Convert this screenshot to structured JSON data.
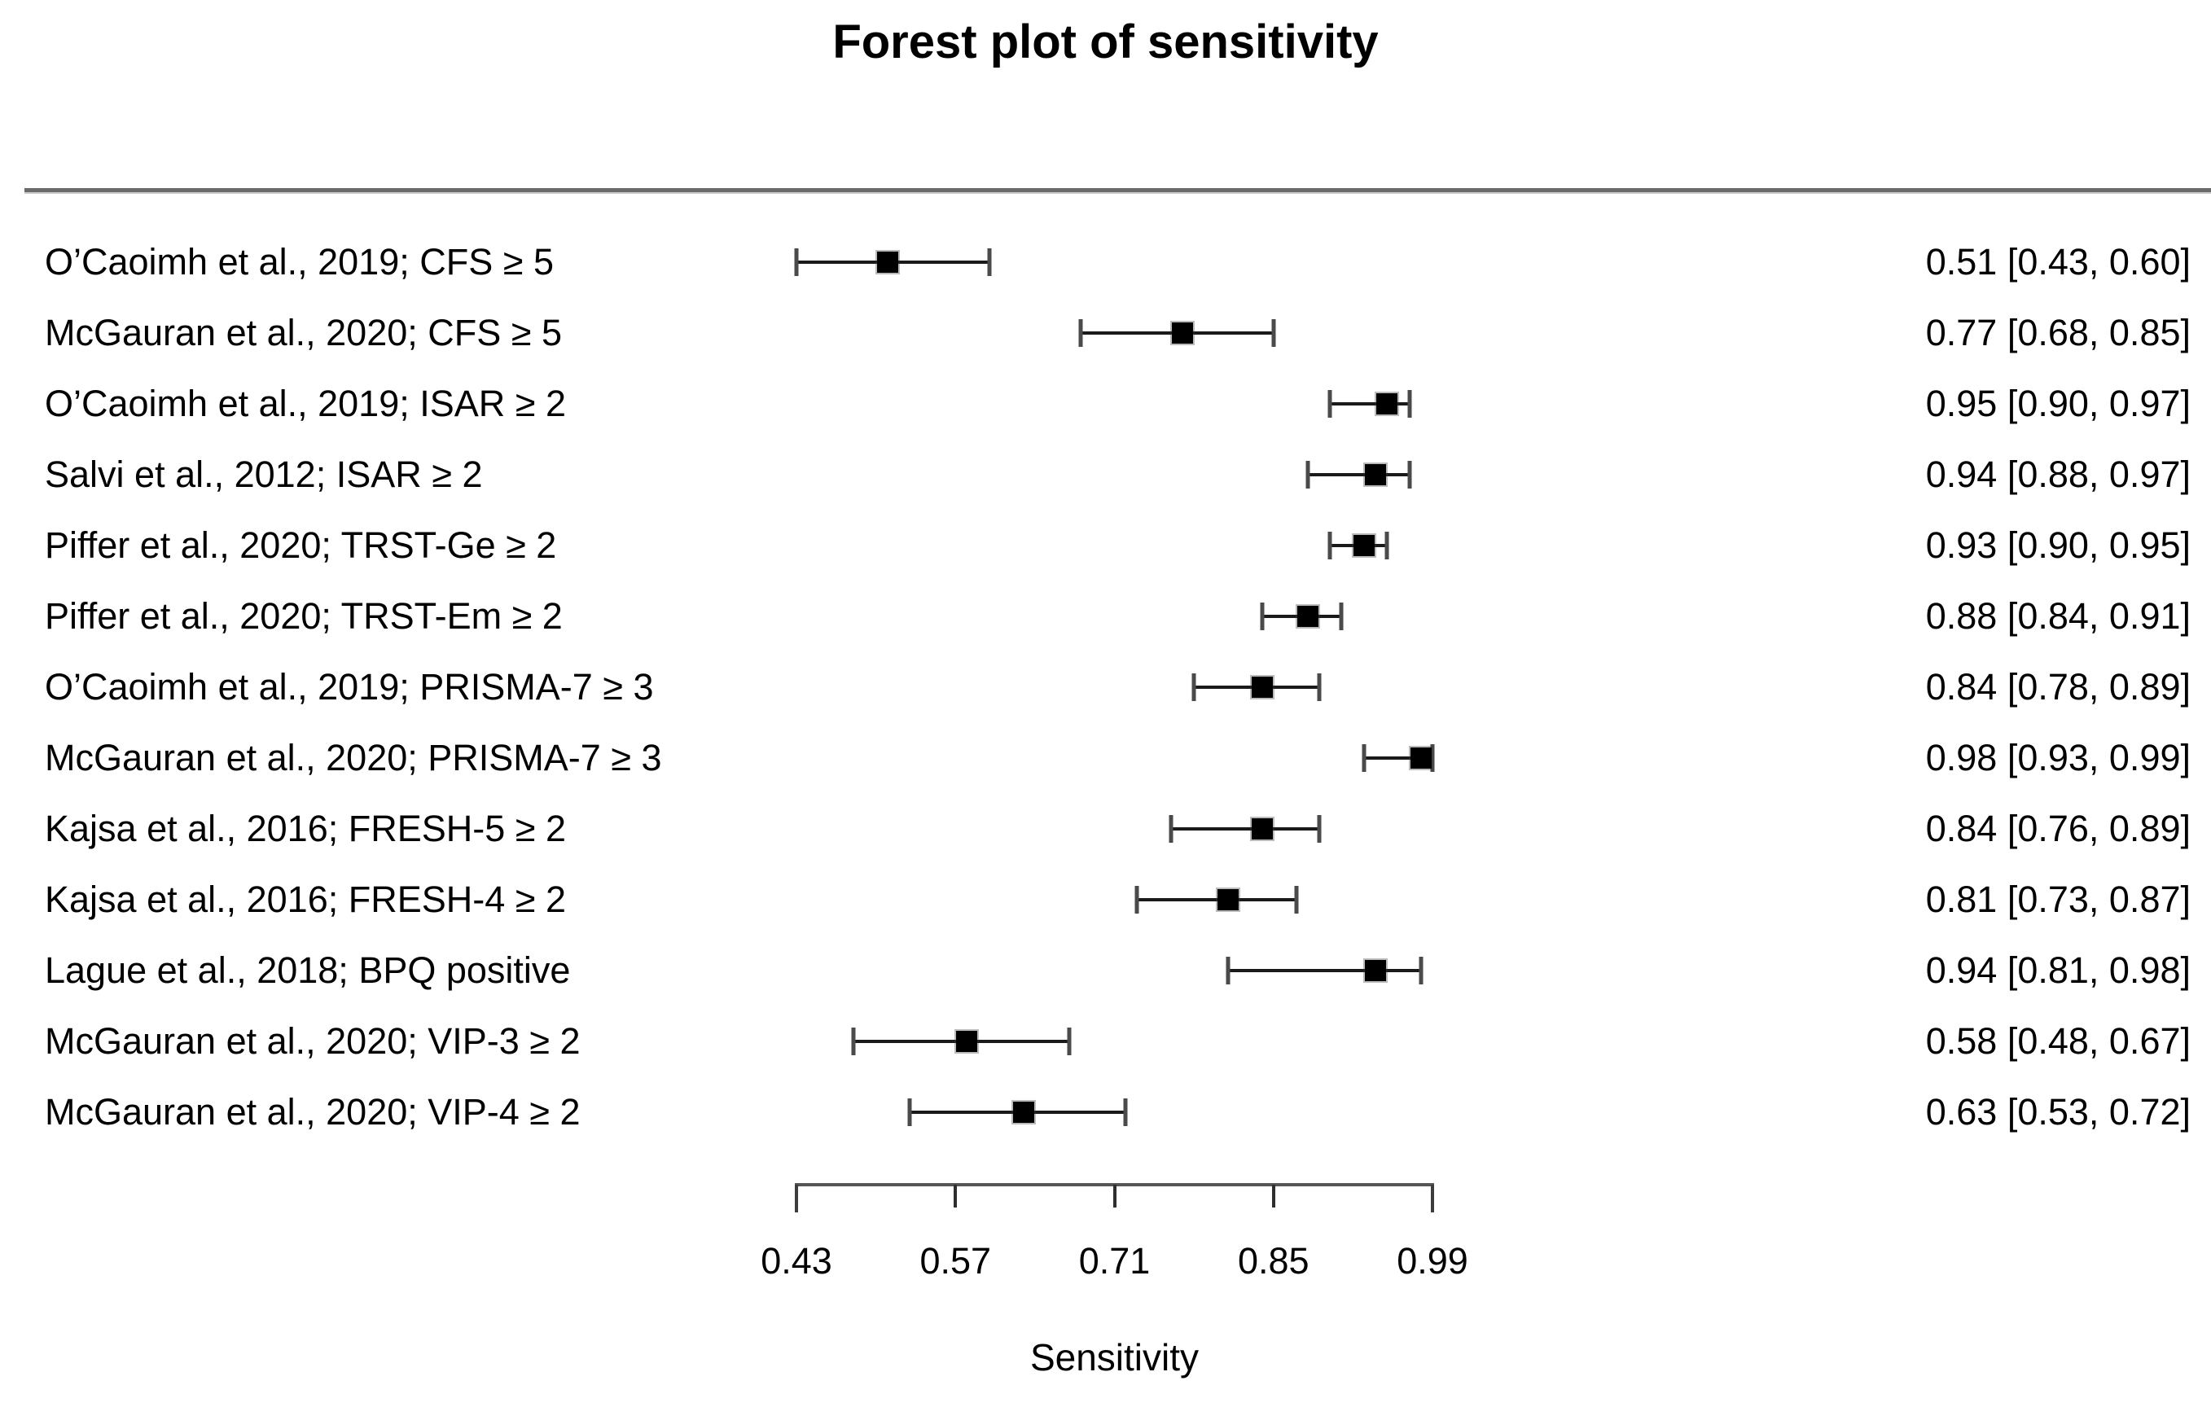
{
  "chart_data": {
    "type": "forest",
    "title": "Forest plot of sensitivity",
    "xlabel": "Sensitivity",
    "xlim": [
      0.43,
      0.99
    ],
    "axis_ticks": [
      "0.43",
      "0.57",
      "0.71",
      "0.85",
      "0.99"
    ],
    "grid": false,
    "legend": "none",
    "marker_color": "#000000",
    "ci_line_color": "#1a1a1a",
    "divider_color": "#6b6b6b",
    "studies": [
      {
        "label": "O’Caoimh et al., 2019; CFS ≥ 5",
        "estimate": 0.51,
        "ci_lower": 0.43,
        "ci_upper": 0.6,
        "value_text": "0.51 [0.43, 0.60]"
      },
      {
        "label": "McGauran et al., 2020; CFS ≥ 5",
        "estimate": 0.77,
        "ci_lower": 0.68,
        "ci_upper": 0.85,
        "value_text": "0.77 [0.68, 0.85]"
      },
      {
        "label": "O’Caoimh et al., 2019; ISAR ≥ 2",
        "estimate": 0.95,
        "ci_lower": 0.9,
        "ci_upper": 0.97,
        "value_text": "0.95 [0.90, 0.97]"
      },
      {
        "label": "Salvi et al., 2012; ISAR ≥ 2",
        "estimate": 0.94,
        "ci_lower": 0.88,
        "ci_upper": 0.97,
        "value_text": "0.94 [0.88, 0.97]"
      },
      {
        "label": "Piffer et al., 2020; TRST-Ge ≥ 2",
        "estimate": 0.93,
        "ci_lower": 0.9,
        "ci_upper": 0.95,
        "value_text": "0.93 [0.90, 0.95]"
      },
      {
        "label": "Piffer et al., 2020; TRST-Em ≥ 2",
        "estimate": 0.88,
        "ci_lower": 0.84,
        "ci_upper": 0.91,
        "value_text": "0.88 [0.84, 0.91]"
      },
      {
        "label": "O’Caoimh et al., 2019; PRISMA-7 ≥ 3",
        "estimate": 0.84,
        "ci_lower": 0.78,
        "ci_upper": 0.89,
        "value_text": "0.84 [0.78, 0.89]"
      },
      {
        "label": "McGauran et al., 2020; PRISMA-7 ≥ 3",
        "estimate": 0.98,
        "ci_lower": 0.93,
        "ci_upper": 0.99,
        "value_text": "0.98 [0.93, 0.99]"
      },
      {
        "label": "Kajsa et al., 2016; FRESH-5 ≥ 2",
        "estimate": 0.84,
        "ci_lower": 0.76,
        "ci_upper": 0.89,
        "value_text": "0.84 [0.76, 0.89]"
      },
      {
        "label": "Kajsa et al., 2016; FRESH-4 ≥ 2",
        "estimate": 0.81,
        "ci_lower": 0.73,
        "ci_upper": 0.87,
        "value_text": "0.81 [0.73, 0.87]"
      },
      {
        "label": "Lague et al., 2018; BPQ positive",
        "estimate": 0.94,
        "ci_lower": 0.81,
        "ci_upper": 0.98,
        "value_text": "0.94 [0.81, 0.98]"
      },
      {
        "label": "McGauran et al., 2020; VIP-3 ≥ 2",
        "estimate": 0.58,
        "ci_lower": 0.48,
        "ci_upper": 0.67,
        "value_text": "0.58 [0.48, 0.67]"
      },
      {
        "label": "McGauran et al., 2020; VIP-4 ≥ 2",
        "estimate": 0.63,
        "ci_lower": 0.53,
        "ci_upper": 0.72,
        "value_text": "0.63 [0.53, 0.72]"
      }
    ]
  }
}
